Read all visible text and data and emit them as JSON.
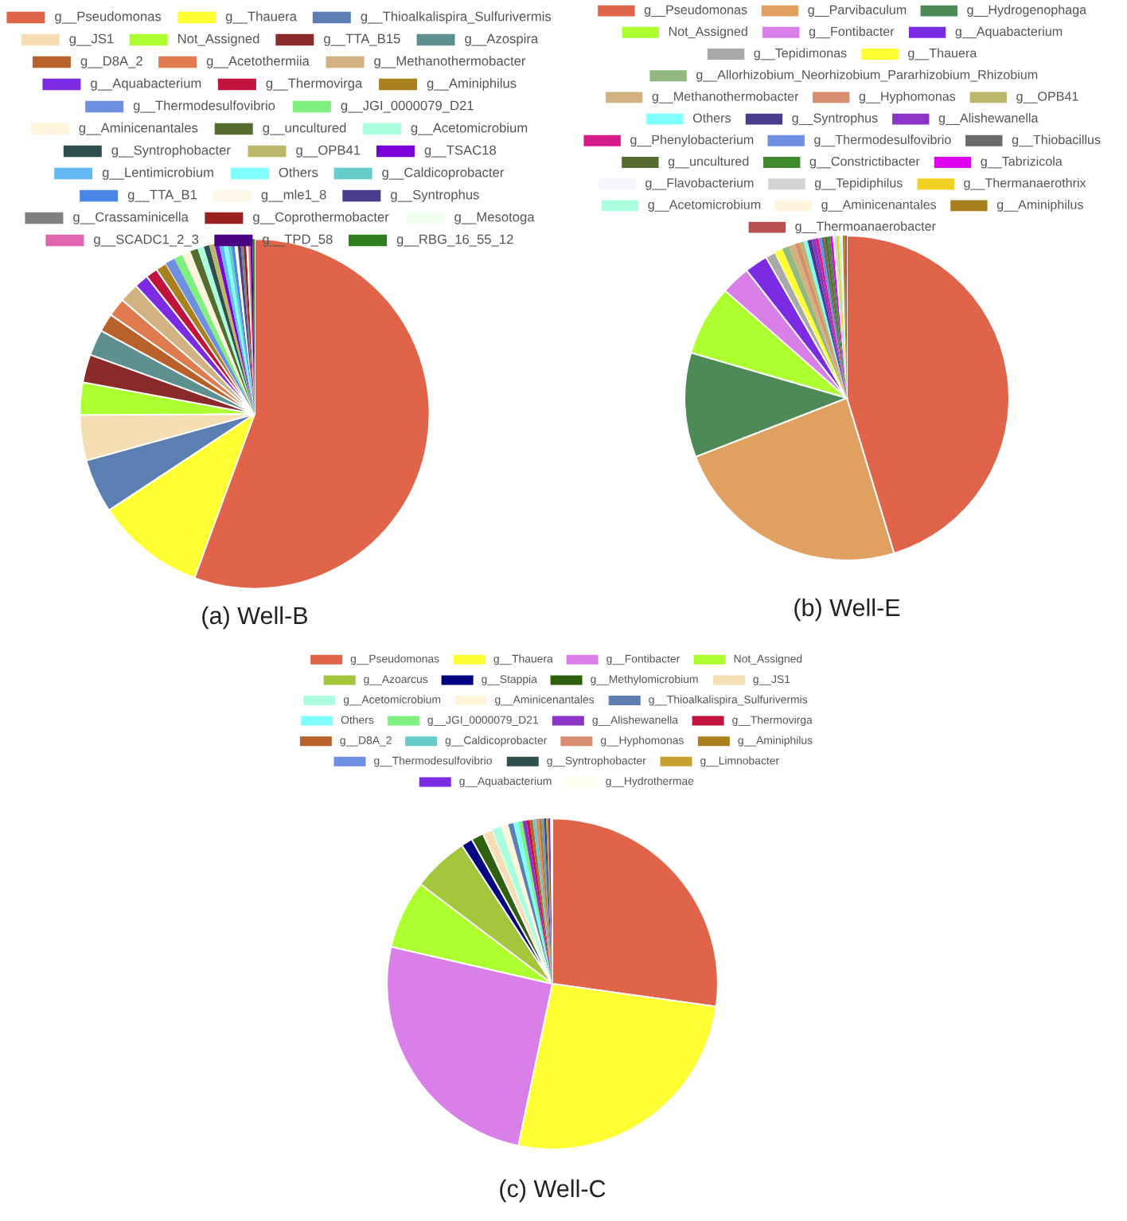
{
  "chart_data": [
    {
      "type": "pie",
      "title": "(a) Well-B",
      "legend": "top",
      "categories": [
        "g__Pseudomonas",
        "g__Thauera",
        "g__Thioalkalispira_Sulfurivermis",
        "g__JS1",
        "Not_Assigned",
        "g__TTA_B15",
        "g__Azospira",
        "g__D8A_2",
        "g__Acetothermiia",
        "g__Methanothermobacter",
        "g__Aquabacterium",
        "g__Thermovirga",
        "g__Aminiphilus",
        "g__Thermodesulfovibrio",
        "g__JGI_0000079_D21",
        "g__Aminicenantales",
        "g__uncultured",
        "g__Acetomicrobium",
        "g__Syntrophobacter",
        "g__OPB41",
        "g__TSAC18",
        "g__Lentimicrobium",
        "Others",
        "g__Caldicoprobacter",
        "g__TTA_B1",
        "g__mle1_8",
        "g__Syntrophus",
        "g__Crassaminicella",
        "g__Coprothermobacter",
        "g__Mesotoga",
        "g__SCADC1_2_3",
        "g__TPD_58",
        "g__RBG_16_55_12"
      ],
      "values": [
        55.6,
        10.1,
        5.0,
        4.2,
        3.0,
        2.6,
        2.4,
        1.7,
        1.7,
        1.8,
        1.3,
        1.1,
        1.0,
        0.9,
        0.8,
        0.8,
        0.7,
        0.6,
        0.5,
        0.5,
        0.4,
        0.4,
        0.4,
        0.3,
        0.3,
        0.3,
        0.3,
        0.25,
        0.25,
        0.2,
        0.2,
        0.2,
        0.2
      ],
      "colors": [
        "#e0644a",
        "#ffff33",
        "#5b7fb0",
        "#f5deb3",
        "#adff2f",
        "#8b2a2a",
        "#5f9090",
        "#b8612a",
        "#e07b50",
        "#d2b280",
        "#7b2be2",
        "#c0143c",
        "#a8801e",
        "#6f8fe0",
        "#7ff07f",
        "#fff5dc",
        "#556b2f",
        "#aaffdd",
        "#2f4f4f",
        "#bdb76b",
        "#7b00d8",
        "#66b8f0",
        "#80ffff",
        "#66cccc",
        "#4a86e8",
        "#fdf8e8",
        "#483d8b",
        "#808080",
        "#9b2020",
        "#f0fff0",
        "#e066b0",
        "#4b0082",
        "#2e7d1e"
      ]
    },
    {
      "type": "pie",
      "title": "(b) Well-E",
      "legend": "top",
      "categories": [
        "g__Pseudomonas",
        "g__Parvibaculum",
        "g__Hydrogenophaga",
        "Not_Assigned",
        "g__Fontibacter",
        "g__Aquabacterium",
        "g__Tepidimonas",
        "g__Thauera",
        "g__Allorhizobium_Neorhizobium_Pararhizobium_Rhizobium",
        "g__Methanothermobacter",
        "g__Hyphomonas",
        "g__OPB41",
        "Others",
        "g__Syntrophus",
        "g__Alishewanella",
        "g__Phenylobacterium",
        "g__Thermodesulfovibrio",
        "g__Thiobacillus",
        "g__uncultured",
        "g__Constrictibacter",
        "g__Tabrizicola",
        "g__Flavobacterium",
        "g__Tepidiphilus",
        "g__Thermanaerothrix",
        "g__Acetomicrobium",
        "g__Aminicenantales",
        "g__Aminiphilus",
        "g__Thermoanaerobacter"
      ],
      "values": [
        45.3,
        23.8,
        10.4,
        7.0,
        2.9,
        2.3,
        1.0,
        0.8,
        0.7,
        0.6,
        0.5,
        0.4,
        0.4,
        0.4,
        0.4,
        0.3,
        0.3,
        0.3,
        0.3,
        0.25,
        0.25,
        0.2,
        0.2,
        0.2,
        0.2,
        0.2,
        0.2,
        0.2
      ],
      "colors": [
        "#e0644a",
        "#e0a060",
        "#4e8a57",
        "#adff2f",
        "#d880e8",
        "#7b2be2",
        "#a9a9a9",
        "#ffff33",
        "#90b880",
        "#d2b280",
        "#d88c70",
        "#bdb76b",
        "#80ffff",
        "#483d8b",
        "#8a35c8",
        "#d81b8a",
        "#6f8fe0",
        "#6a6a6a",
        "#556b2f",
        "#3f8a2f",
        "#e000f0",
        "#f4f6fc",
        "#d3d3d3",
        "#f0d020",
        "#aaffdd",
        "#fff5dc",
        "#a8801e",
        "#b85050"
      ]
    },
    {
      "type": "pie",
      "title": "(c) Well-C",
      "legend": "top",
      "categories": [
        "g__Pseudomonas",
        "g__Thauera",
        "g__Fontibacter",
        "Not_Assigned",
        "g__Azoarcus",
        "g__Stappia",
        "g__Methylomicrobium",
        "g__JS1",
        "g__Acetomicrobium",
        "g__Aminicenantales",
        "g__Thioalkalispira_Sulfurivermis",
        "Others",
        "g__JGI_0000079_D21",
        "g__Alishewanella",
        "g__Thermovirga",
        "g__D8A_2",
        "g__Caldicoprobacter",
        "g__Hyphomonas",
        "g__Aminiphilus",
        "g__Thermodesulfovibrio",
        "g__Syntrophobacter",
        "g__Limnobacter",
        "g__Aquabacterium",
        "g__Hydrothermae"
      ],
      "values": [
        27.2,
        26.1,
        25.3,
        6.7,
        5.5,
        1.1,
        1.2,
        1.0,
        0.9,
        0.7,
        0.5,
        0.5,
        0.4,
        0.4,
        0.3,
        0.3,
        0.3,
        0.3,
        0.25,
        0.25,
        0.2,
        0.2,
        0.2,
        0.2
      ],
      "colors": [
        "#e0644a",
        "#ffff33",
        "#d880e8",
        "#adff2f",
        "#a4c63c",
        "#000080",
        "#2f6010",
        "#f5deb3",
        "#aaffdd",
        "#fff5dc",
        "#5b7fb0",
        "#80ffff",
        "#7ff07f",
        "#8a35c8",
        "#c0143c",
        "#b8612a",
        "#66cccc",
        "#d88c70",
        "#a8801e",
        "#6f8fe0",
        "#2f4f4f",
        "#c9a030",
        "#7b2be2",
        "#fffff0"
      ]
    }
  ]
}
